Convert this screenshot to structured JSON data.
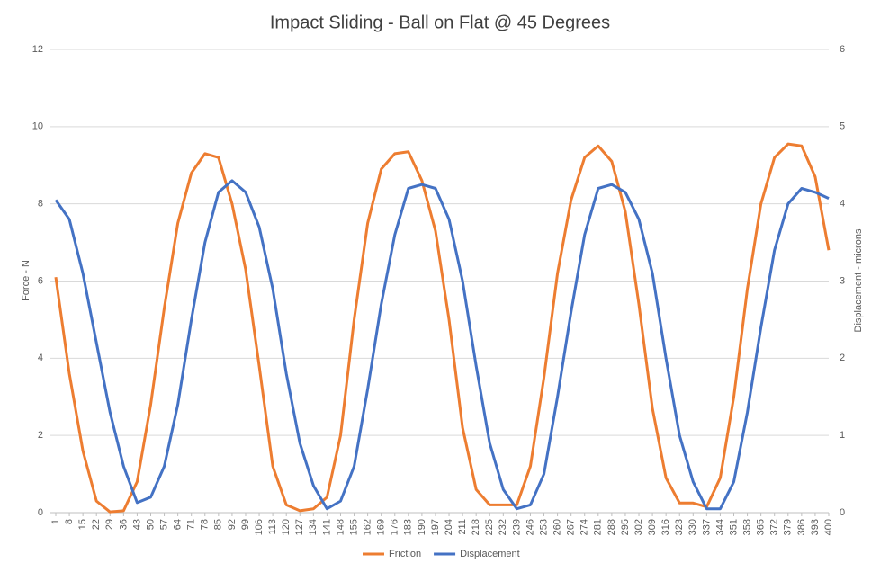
{
  "chart_data": {
    "type": "line",
    "title": "Impact Sliding - Ball on Flat @ 45 Degrees",
    "y_label": "Force - N",
    "y2_label": "Displacement - microns",
    "x": [
      1,
      8,
      15,
      22,
      29,
      36,
      43,
      50,
      57,
      64,
      71,
      78,
      85,
      92,
      99,
      106,
      113,
      120,
      127,
      134,
      141,
      148,
      155,
      162,
      169,
      176,
      183,
      190,
      197,
      204,
      211,
      218,
      225,
      232,
      239,
      246,
      253,
      260,
      267,
      274,
      281,
      288,
      295,
      302,
      309,
      316,
      323,
      330,
      337,
      344,
      351,
      358,
      365,
      372,
      379,
      386,
      393,
      400
    ],
    "xlim": [
      1,
      400
    ],
    "xticks": [
      1,
      8,
      15,
      22,
      29,
      36,
      43,
      50,
      57,
      64,
      71,
      78,
      85,
      92,
      99,
      106,
      113,
      120,
      127,
      134,
      141,
      148,
      155,
      162,
      169,
      176,
      183,
      190,
      197,
      204,
      211,
      218,
      225,
      232,
      239,
      246,
      253,
      260,
      267,
      274,
      281,
      288,
      295,
      302,
      309,
      316,
      323,
      330,
      337,
      344,
      351,
      358,
      365,
      372,
      379,
      386,
      393,
      400
    ],
    "ylim": [
      0,
      12
    ],
    "yticks": [
      0,
      2,
      4,
      6,
      8,
      10,
      12
    ],
    "y2lim": [
      0,
      6
    ],
    "y2ticks": [
      0,
      1,
      2,
      3,
      4,
      5,
      6
    ],
    "grid": true,
    "legend": "bottom",
    "series": [
      {
        "name": "Friction",
        "color": "#ed7d31",
        "values": [
          6.1,
          3.6,
          1.6,
          0.3,
          0.02,
          0.05,
          0.8,
          2.8,
          5.3,
          7.5,
          8.8,
          9.3,
          9.2,
          8.0,
          6.3,
          3.8,
          1.2,
          0.2,
          0.05,
          0.1,
          0.4,
          2.0,
          5.0,
          7.5,
          8.9,
          9.3,
          9.35,
          8.6,
          7.3,
          5.0,
          2.2,
          0.6,
          0.2,
          0.2,
          0.2,
          1.2,
          3.5,
          6.2,
          8.1,
          9.2,
          9.5,
          9.1,
          7.8,
          5.4,
          2.7,
          0.9,
          0.25,
          0.25,
          0.15,
          0.9,
          3.0,
          5.8,
          8.0,
          9.2,
          9.55,
          9.5,
          8.7,
          6.8
        ]
      },
      {
        "name": "Displacement",
        "color": "#4472c4",
        "axis": "y2",
        "values": [
          4.05,
          3.8,
          3.1,
          2.2,
          1.3,
          0.6,
          0.13,
          0.2,
          0.6,
          1.4,
          2.5,
          3.5,
          4.15,
          4.3,
          4.15,
          3.7,
          2.9,
          1.8,
          0.9,
          0.35,
          0.05,
          0.15,
          0.6,
          1.6,
          2.7,
          3.6,
          4.2,
          4.25,
          4.2,
          3.8,
          3.0,
          1.9,
          0.9,
          0.3,
          0.05,
          0.1,
          0.5,
          1.5,
          2.6,
          3.6,
          4.2,
          4.25,
          4.15,
          3.8,
          3.1,
          2.0,
          1.0,
          0.4,
          0.05,
          0.05,
          0.4,
          1.3,
          2.4,
          3.4,
          4.0,
          4.2,
          4.15,
          4.07
        ]
      }
    ]
  }
}
